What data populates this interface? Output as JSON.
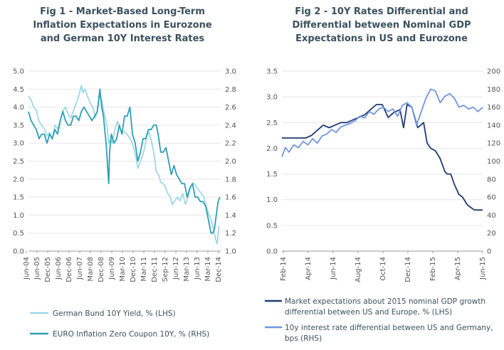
{
  "chart_data": [
    {
      "type": "line",
      "title": [
        "Fig 1 - Market-Based Long-Term",
        "Inflation Expectations in Eurozone",
        "and German 10Y Interest Rates"
      ],
      "x_ticks": [
        "Jun-04",
        "Jun-05",
        "Dec-05",
        "Jun-06",
        "Dec-06",
        "Jun-07",
        "Mar-08",
        "Dec-08",
        "Jun-09",
        "Mar-10",
        "Dec-10",
        "Mar-11",
        "Dec-11",
        "Sep-12",
        "Jun-12",
        "Mar-13",
        "Jun-13",
        "Mar-14",
        "Dec-14"
      ],
      "y_left": {
        "range": [
          0,
          5
        ],
        "ticks": [
          "0.0",
          "0.5",
          "1.0",
          "1.5",
          "2.0",
          "2.5",
          "3.0",
          "3.5",
          "4.0",
          "4.5",
          "5.0"
        ]
      },
      "y_right": {
        "range": [
          1.0,
          3.0
        ],
        "ticks": [
          "1.0",
          "1.2",
          "1.4",
          "1.6",
          "1.8",
          "2.0",
          "2.2",
          "2.4",
          "2.6",
          "2.8",
          "3.0"
        ]
      },
      "x_range": [
        2004.4,
        2015.3
      ],
      "series": [
        {
          "name": "German Bund 10Y Yield, % (LHS)",
          "axis": "left",
          "color": "#9fd8e4",
          "x": [
            2004.4,
            2004.55,
            2004.7,
            2004.85,
            2005.0,
            2005.15,
            2005.3,
            2005.45,
            2005.6,
            2005.75,
            2005.9,
            2006.05,
            2006.2,
            2006.35,
            2006.5,
            2006.65,
            2006.8,
            2006.95,
            2007.1,
            2007.25,
            2007.4,
            2007.5,
            2007.6,
            2007.75,
            2007.9,
            2008.05,
            2008.2,
            2008.35,
            2008.45,
            2008.55,
            2008.7,
            2008.85,
            2008.95,
            2009.05,
            2009.15,
            2009.3,
            2009.45,
            2009.6,
            2009.75,
            2009.9,
            2010.05,
            2010.2,
            2010.35,
            2010.5,
            2010.6,
            2010.75,
            2010.9,
            2011.0,
            2011.1,
            2011.25,
            2011.4,
            2011.55,
            2011.65,
            2011.8,
            2011.9,
            2012.0,
            2012.15,
            2012.3,
            2012.45,
            2012.55,
            2012.7,
            2012.85,
            2013.0,
            2013.15,
            2013.3,
            2013.45,
            2013.6,
            2013.75,
            2013.9,
            2014.05,
            2014.2,
            2014.35,
            2014.5,
            2014.65,
            2014.8,
            2014.9,
            2015.0,
            2015.1,
            2015.2
          ],
          "y": [
            4.3,
            4.2,
            4.0,
            3.9,
            3.6,
            3.5,
            3.4,
            3.2,
            3.3,
            3.1,
            3.5,
            3.4,
            3.6,
            3.9,
            4.0,
            3.8,
            3.7,
            3.9,
            4.1,
            4.3,
            4.6,
            4.4,
            4.5,
            4.3,
            4.1,
            4.0,
            3.7,
            4.0,
            4.4,
            4.2,
            3.8,
            3.5,
            3.0,
            3.1,
            3.0,
            3.4,
            3.6,
            3.4,
            3.3,
            3.3,
            3.2,
            3.1,
            2.9,
            2.6,
            2.3,
            2.5,
            2.7,
            2.9,
            3.2,
            3.3,
            3.0,
            2.6,
            2.2,
            2.1,
            1.9,
            1.9,
            1.8,
            1.6,
            1.5,
            1.3,
            1.4,
            1.5,
            1.4,
            1.6,
            1.3,
            1.5,
            1.8,
            1.9,
            1.8,
            1.7,
            1.6,
            1.5,
            1.2,
            1.0,
            0.8,
            0.6,
            0.35,
            0.2,
            0.7
          ]
        },
        {
          "name": "EURO Inflation Zero Coupon 10Y, % (RHS)",
          "axis": "right",
          "color": "#2e9eb6",
          "x": [
            2004.4,
            2004.55,
            2004.7,
            2004.85,
            2005.0,
            2005.15,
            2005.3,
            2005.45,
            2005.6,
            2005.75,
            2005.9,
            2006.05,
            2006.2,
            2006.35,
            2006.5,
            2006.65,
            2006.8,
            2006.95,
            2007.1,
            2007.25,
            2007.4,
            2007.55,
            2007.7,
            2007.85,
            2008.0,
            2008.15,
            2008.3,
            2008.45,
            2008.55,
            2008.65,
            2008.8,
            2008.9,
            2008.95,
            2009.0,
            2009.1,
            2009.25,
            2009.4,
            2009.55,
            2009.7,
            2009.85,
            2010.0,
            2010.15,
            2010.3,
            2010.45,
            2010.6,
            2010.75,
            2010.9,
            2011.05,
            2011.2,
            2011.35,
            2011.5,
            2011.65,
            2011.75,
            2011.9,
            2012.05,
            2012.2,
            2012.35,
            2012.5,
            2012.65,
            2012.8,
            2012.95,
            2013.1,
            2013.25,
            2013.4,
            2013.55,
            2013.7,
            2013.85,
            2014.0,
            2014.15,
            2014.3,
            2014.45,
            2014.6,
            2014.75,
            2014.85,
            2014.95,
            2015.05,
            2015.15,
            2015.25
          ],
          "y": [
            2.55,
            2.45,
            2.4,
            2.35,
            2.25,
            2.3,
            2.3,
            2.2,
            2.3,
            2.25,
            2.35,
            2.3,
            2.45,
            2.55,
            2.45,
            2.4,
            2.4,
            2.5,
            2.5,
            2.45,
            2.55,
            2.6,
            2.55,
            2.5,
            2.45,
            2.5,
            2.55,
            2.8,
            2.6,
            2.5,
            2.2,
            1.9,
            1.75,
            2.1,
            2.3,
            2.2,
            2.25,
            2.4,
            2.3,
            2.5,
            2.5,
            2.6,
            2.3,
            2.2,
            2.0,
            2.1,
            2.25,
            2.25,
            2.35,
            2.35,
            2.4,
            2.4,
            2.3,
            2.1,
            2.1,
            2.15,
            2.0,
            1.85,
            1.95,
            1.85,
            1.8,
            1.75,
            1.75,
            1.6,
            1.7,
            1.75,
            1.6,
            1.6,
            1.55,
            1.55,
            1.5,
            1.35,
            1.2,
            1.2,
            1.25,
            1.4,
            1.55,
            1.6
          ]
        }
      ]
    },
    {
      "type": "line",
      "title": [
        "Fig 2 - 10Y Rates Differential and",
        "Differential between Nominal GDP",
        "Expectations in US and Eurozone"
      ],
      "x_ticks": [
        "Feb-14",
        "Apr-14",
        "Jun-14",
        "Aug-14",
        "Oct-14",
        "Dec-14",
        "Feb-15",
        "Apr-15",
        "Jun-15"
      ],
      "y_left": {
        "range": [
          0,
          3.5
        ],
        "ticks": [
          "0.0",
          "0.5",
          "1.0",
          "1.5",
          "2.0",
          "2.5",
          "3.0",
          "3.5"
        ]
      },
      "y_right": {
        "range": [
          0,
          200
        ],
        "ticks": [
          "0",
          "20",
          "40",
          "60",
          "80",
          "100",
          "120",
          "140",
          "160",
          "180",
          "200"
        ]
      },
      "x_range": [
        0,
        17
      ],
      "series": [
        {
          "name": "Market expectations about 2015 nominal GDP growth differential between US and Europe, % (LHS)",
          "axis": "left",
          "color": "#1f3b73",
          "x": [
            0,
            0.5,
            1,
            1.5,
            2,
            2.5,
            3,
            3.5,
            4,
            4.5,
            5,
            5.5,
            6,
            6.5,
            7,
            7.5,
            8,
            8.5,
            9,
            9.5,
            10,
            10.3,
            10.6,
            11,
            11.5,
            12,
            12.3,
            12.6,
            13,
            13.4,
            13.8,
            14,
            14.3,
            14.6,
            15,
            15.3,
            15.7,
            16,
            16.3,
            16.6,
            17
          ],
          "y": [
            2.2,
            2.2,
            2.2,
            2.2,
            2.2,
            2.25,
            2.35,
            2.45,
            2.4,
            2.45,
            2.5,
            2.5,
            2.55,
            2.6,
            2.65,
            2.75,
            2.85,
            2.85,
            2.6,
            2.7,
            2.75,
            2.4,
            2.85,
            2.8,
            2.4,
            2.5,
            2.1,
            2.0,
            1.95,
            1.8,
            1.55,
            1.5,
            1.5,
            1.3,
            1.1,
            1.05,
            0.9,
            0.85,
            0.8,
            0.8,
            0.8
          ]
        },
        {
          "name": "10y interest rate differential between US and Germany, bps (RHS)",
          "axis": "right",
          "color": "#6f96e0",
          "x": [
            0,
            0.3,
            0.6,
            1,
            1.4,
            1.8,
            2.2,
            2.6,
            3,
            3.4,
            3.8,
            4.2,
            4.6,
            5,
            5.4,
            5.8,
            6.2,
            6.6,
            7,
            7.4,
            7.8,
            8.2,
            8.6,
            9,
            9.4,
            9.8,
            10.2,
            10.6,
            11,
            11.4,
            11.8,
            12.2,
            12.6,
            13,
            13.4,
            13.8,
            14.2,
            14.6,
            15,
            15.4,
            15.8,
            16.2,
            16.6,
            17
          ],
          "y": [
            105,
            115,
            110,
            118,
            115,
            122,
            118,
            125,
            120,
            128,
            130,
            135,
            132,
            138,
            140,
            142,
            145,
            150,
            148,
            155,
            152,
            158,
            160,
            155,
            158,
            150,
            162,
            165,
            160,
            140,
            155,
            170,
            180,
            178,
            165,
            172,
            175,
            170,
            160,
            162,
            158,
            160,
            155,
            160
          ]
        }
      ]
    }
  ]
}
